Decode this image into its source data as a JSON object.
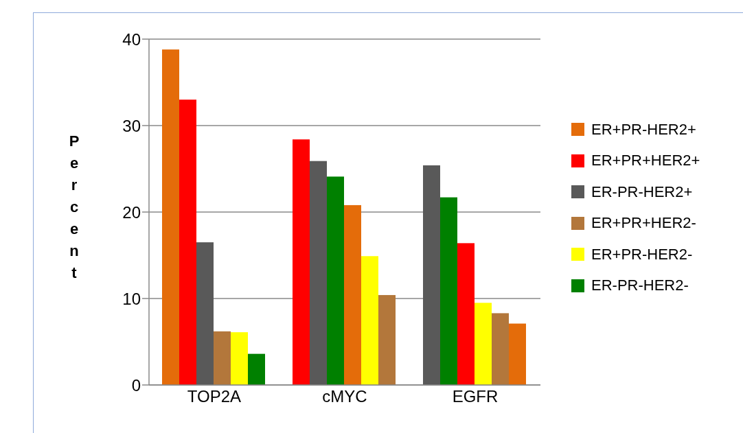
{
  "chart_data": {
    "type": "bar",
    "ylabel": "Percent",
    "categories": [
      "TOP2A",
      "cMYC",
      "EGFR"
    ],
    "series": [
      {
        "name": "ER+PR-HER2+",
        "color": "#e46c0a",
        "values": [
          38.8,
          20.8,
          7.1
        ]
      },
      {
        "name": "ER+PR+HER2+",
        "color": "#ff0000",
        "values": [
          33.0,
          28.4,
          16.4
        ]
      },
      {
        "name": "ER-PR-HER2+",
        "color": "#595959",
        "values": [
          16.5,
          25.9,
          25.4
        ]
      },
      {
        "name": "ER+PR+HER2-",
        "color": "#b3773b",
        "values": [
          6.2,
          10.4,
          8.3
        ]
      },
      {
        "name": "ER+PR-HER2-",
        "color": "#ffff00",
        "values": [
          6.1,
          14.9,
          9.5
        ]
      },
      {
        "name": "ER-PR-HER2-",
        "color": "#008000",
        "values": [
          3.6,
          24.1,
          21.7
        ]
      }
    ],
    "ylim": [
      0,
      40
    ],
    "yticks": [
      0,
      10,
      20,
      30,
      40
    ],
    "grid": "y",
    "legend": "right"
  }
}
